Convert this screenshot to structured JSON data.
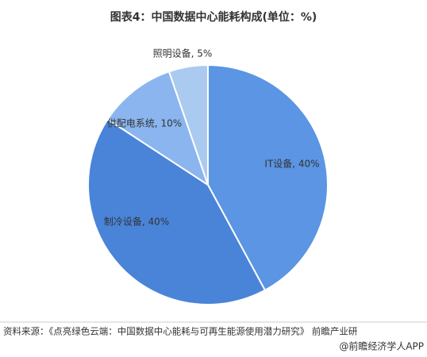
{
  "chart_data": {
    "type": "pie",
    "title": "图表4：中国数据中心能耗构成(单位：%)",
    "values": [
      40,
      40,
      10,
      5
    ],
    "value_labels": [
      "IT设备, 40%",
      "制冷设备, 40%",
      "供配电系统, 10%",
      "照明设备, 5%"
    ],
    "colors": [
      "#5b95e3",
      "#4a84d8",
      "#8ab5ef",
      "#aacaf0"
    ],
    "source": "资料来源：《点亮绿色云端：中国数据中心能耗与可再生能源使用潜力研究》 前瞻产业研",
    "footer": "@前瞻经济学人APP"
  }
}
